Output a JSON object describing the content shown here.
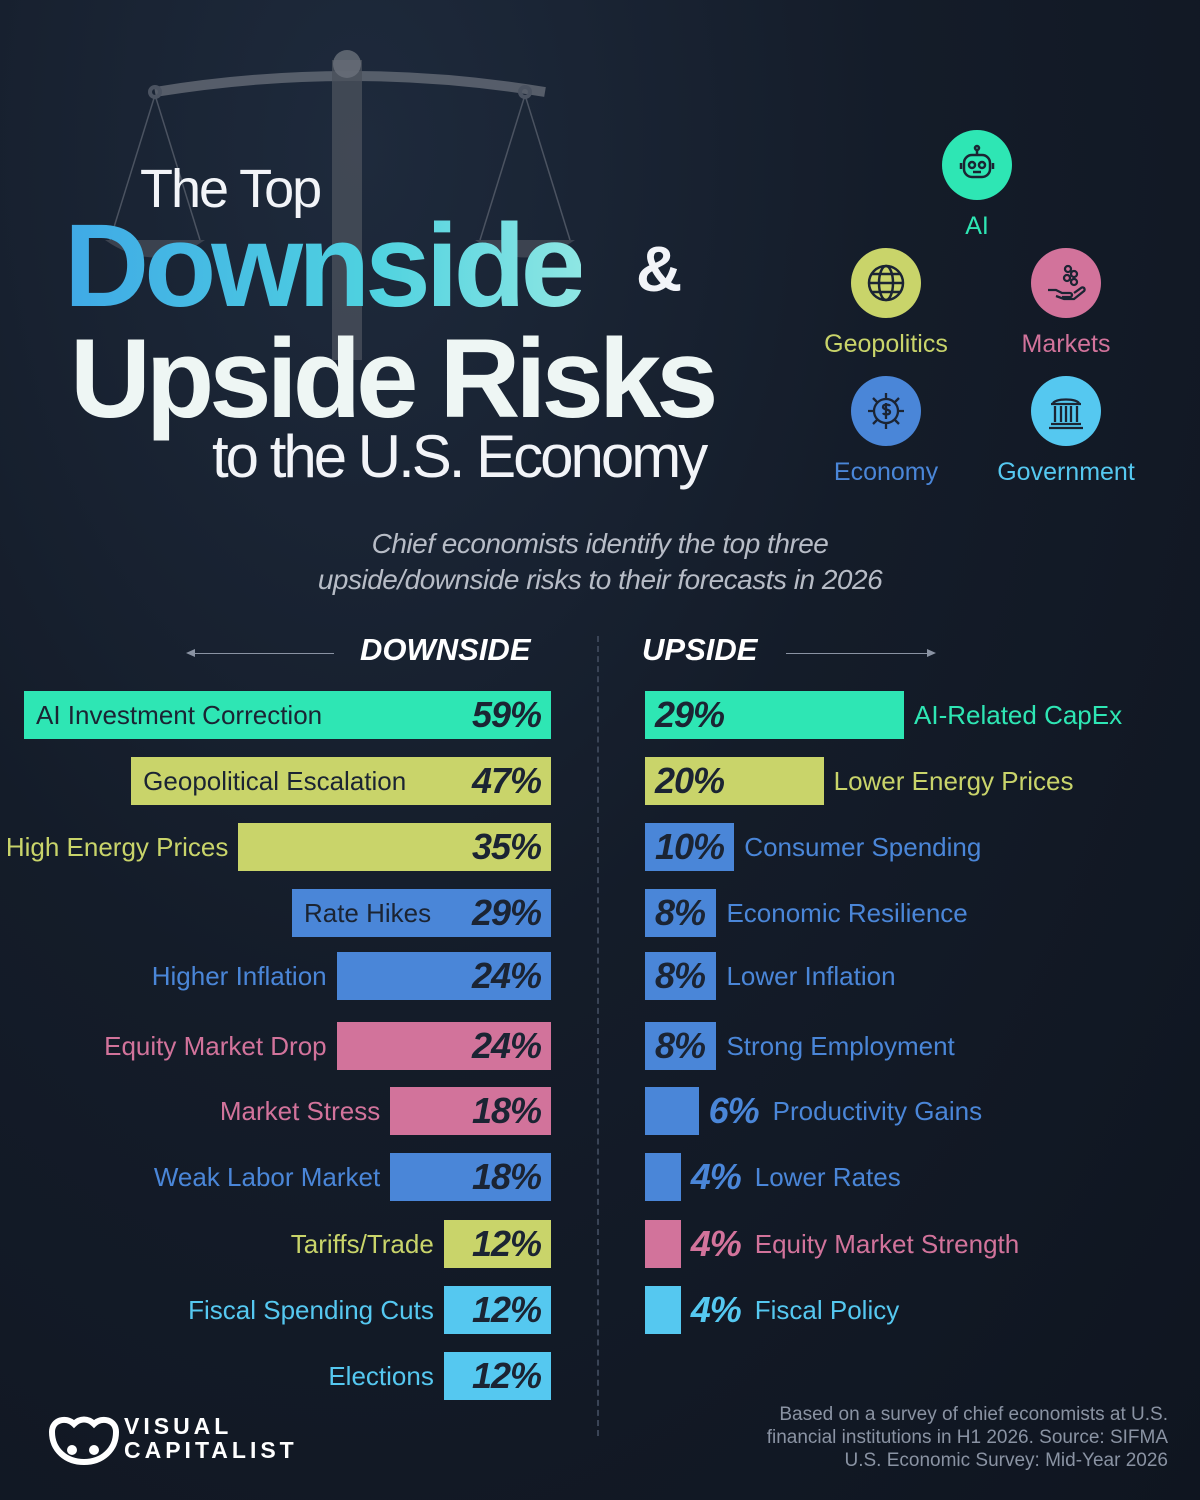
{
  "title": {
    "line1": "The Top",
    "line2": "Downside",
    "amp": "&",
    "line3": "Upside Risks",
    "line4": "to the U.S. Economy"
  },
  "subtitle": {
    "line1": "Chief economists identify the top three",
    "line2": "upside/downside risks to their forecasts in 2026"
  },
  "legend": [
    {
      "label": "AI",
      "color": "#2ee6b4",
      "icon": "robot-icon"
    },
    {
      "label": "Geopolitics",
      "color": "#c9d46a",
      "icon": "globe-icon"
    },
    {
      "label": "Markets",
      "color": "#d2739b",
      "icon": "hand-coins-icon"
    },
    {
      "label": "Economy",
      "color": "#4a86d8",
      "icon": "gear-dollar-icon"
    },
    {
      "label": "Government",
      "color": "#55c8f0",
      "icon": "bank-icon"
    }
  ],
  "headers": {
    "downside": "DOWNSIDE",
    "upside": "UPSIDE"
  },
  "chart_data": {
    "type": "bar",
    "category_colors": {
      "AI": "#2ee6b4",
      "Geopolitics": "#c9d46a",
      "Markets": "#d2739b",
      "Economy": "#4a86d8",
      "Government": "#55c8f0"
    },
    "downside": [
      {
        "label": "AI Investment Correction",
        "value": 59,
        "display": "59%",
        "category": "AI"
      },
      {
        "label": "Geopolitical Escalation",
        "value": 47,
        "display": "47%",
        "category": "Geopolitics"
      },
      {
        "label": "High Energy Prices",
        "value": 35,
        "display": "35%",
        "category": "Geopolitics"
      },
      {
        "label": "Rate Hikes",
        "value": 29,
        "display": "29%",
        "category": "Economy"
      },
      {
        "label": "Higher Inflation",
        "value": 24,
        "display": "24%",
        "category": "Economy"
      },
      {
        "label": "Equity Market Drop",
        "value": 24,
        "display": "24%",
        "category": "Markets"
      },
      {
        "label": "Market Stress",
        "value": 18,
        "display": "18%",
        "category": "Markets"
      },
      {
        "label": "Weak Labor Market",
        "value": 18,
        "display": "18%",
        "category": "Economy"
      },
      {
        "label": "Tariffs/Trade",
        "value": 12,
        "display": "12%",
        "category": "Geopolitics"
      },
      {
        "label": "Fiscal Spending Cuts",
        "value": 12,
        "display": "12%",
        "category": "Government"
      },
      {
        "label": "Elections",
        "value": 12,
        "display": "12%",
        "category": "Government"
      }
    ],
    "upside": [
      {
        "label": "AI-Related CapEx",
        "value": 29,
        "display": "29%",
        "category": "AI"
      },
      {
        "label": "Lower Energy Prices",
        "value": 20,
        "display": "20%",
        "category": "Geopolitics"
      },
      {
        "label": "Consumer Spending",
        "value": 10,
        "display": "10%",
        "category": "Economy"
      },
      {
        "label": "Economic Resilience",
        "value": 8,
        "display": "8%",
        "category": "Economy"
      },
      {
        "label": "Lower Inflation",
        "value": 8,
        "display": "8%",
        "category": "Economy"
      },
      {
        "label": "Strong Employment",
        "value": 8,
        "display": "8%",
        "category": "Economy"
      },
      {
        "label": "Productivity Gains",
        "value": 6,
        "display": "6%",
        "category": "Economy"
      },
      {
        "label": "Lower Rates",
        "value": 4,
        "display": "4%",
        "category": "Economy"
      },
      {
        "label": "Equity Market Strength",
        "value": 4,
        "display": "4%",
        "category": "Markets"
      },
      {
        "label": "Fiscal Policy",
        "value": 4,
        "display": "4%",
        "category": "Government"
      }
    ]
  },
  "source": {
    "line1": "Based on a survey of chief economists at U.S.",
    "line2": "financial institutions in H1 2026. Source: SIFMA",
    "line3": "U.S. Economic Survey: Mid-Year 2026"
  },
  "logo": {
    "line1": "VISUAL",
    "line2": "CAPITALIST"
  }
}
